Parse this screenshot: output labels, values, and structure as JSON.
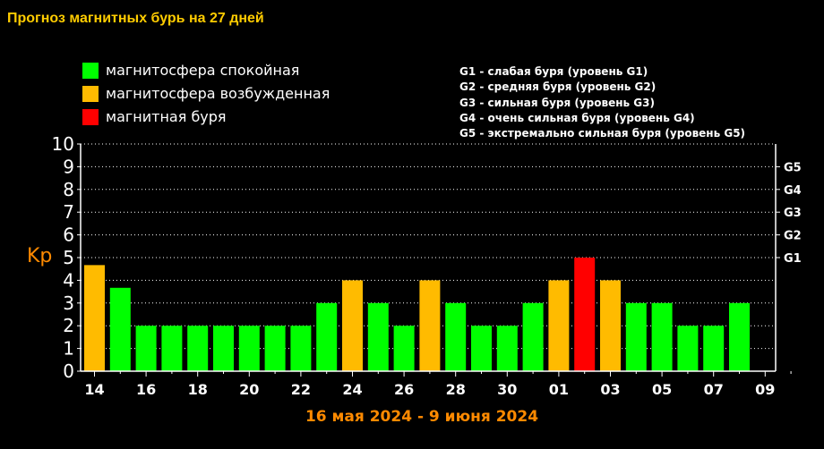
{
  "title": "Прогноз магнитных бурь на 27 дней",
  "legend": [
    {
      "label": "магнитосфера спокойная",
      "color": "#00ff00"
    },
    {
      "label": "магнитосфера возбужденная",
      "color": "#ffbb00"
    },
    {
      "label": "магнитная буря",
      "color": "#ff0000"
    }
  ],
  "g_scale_legend": [
    "G1 - слабая буря (уровень G1)",
    "G2 - средняя буря (уровень G2)",
    "G3 - сильная буря (уровень G3)",
    "G4 - очень сильная буря (уровень G4)",
    "G5 - экстремально сильная буря (уровень G5)"
  ],
  "chart_data": {
    "type": "bar",
    "ylabel": "Kp",
    "xlabel": "16 мая 2024 - 9 июня 2024",
    "ylim": [
      0,
      10
    ],
    "yticks": [
      "0",
      "1",
      "2",
      "3",
      "4",
      "5",
      "6",
      "7",
      "8",
      "9",
      "10"
    ],
    "right_ticks": [
      {
        "label": "G1",
        "value": 5
      },
      {
        "label": "G2",
        "value": 6
      },
      {
        "label": "G3",
        "value": 7
      },
      {
        "label": "G4",
        "value": 8
      },
      {
        "label": "G5",
        "value": 9
      }
    ],
    "xtick_labels": [
      "14",
      "16",
      "18",
      "20",
      "22",
      "24",
      "26",
      "28",
      "30",
      "01",
      "03",
      "05",
      "07",
      "09"
    ],
    "values": [
      4.67,
      3.67,
      2,
      2,
      2,
      2,
      2,
      2,
      2,
      3,
      4,
      3,
      2,
      4,
      3,
      2,
      2,
      3,
      4,
      5,
      4,
      3,
      3,
      2,
      2,
      3
    ],
    "colors": [
      "#ffbb00",
      "#00ff00",
      "#00ff00",
      "#00ff00",
      "#00ff00",
      "#00ff00",
      "#00ff00",
      "#00ff00",
      "#00ff00",
      "#00ff00",
      "#ffbb00",
      "#00ff00",
      "#00ff00",
      "#ffbb00",
      "#00ff00",
      "#00ff00",
      "#00ff00",
      "#00ff00",
      "#ffbb00",
      "#ff0000",
      "#ffbb00",
      "#00ff00",
      "#00ff00",
      "#00ff00",
      "#00ff00",
      "#00ff00"
    ],
    "grid": true,
    "colors_meta": {
      "axis": "#ffffff",
      "grid": "#ffffff",
      "label_accent": "#ff8a00"
    }
  }
}
